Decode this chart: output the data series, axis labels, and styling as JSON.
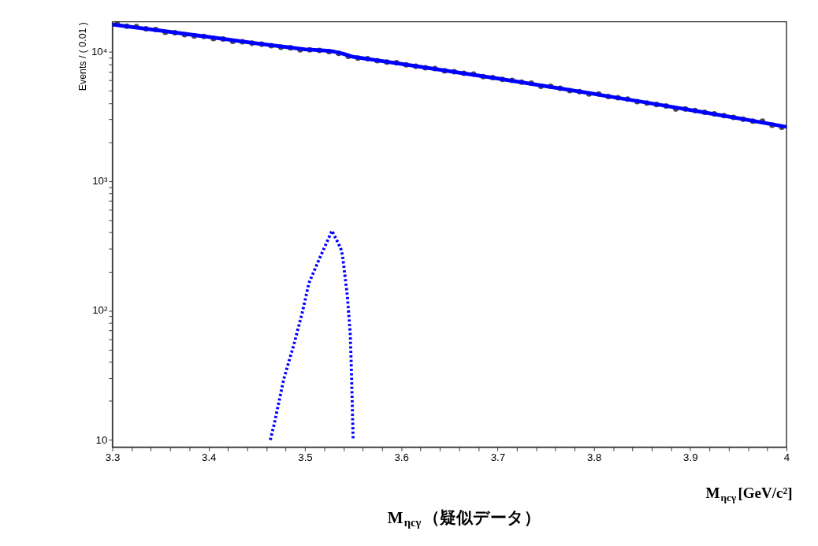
{
  "chart_data": {
    "type": "scatter",
    "ylabel": "Events / ( 0.01 )",
    "xlabel": "M$_{ηcγ}$[GeV/c²]",
    "annotations": [
      "M$_{ηcγ}$（疑似データ）"
    ],
    "log": "y",
    "grid": false,
    "xlim": [
      3.3,
      4.0
    ],
    "xticks": [
      3.3,
      {
        "value": 3.32,
        "label": null
      },
      {
        "value": 3.34,
        "label": null
      },
      {
        "value": 3.36,
        "label": null
      },
      {
        "value": 3.38,
        "label": null
      },
      3.4,
      {
        "value": 3.42,
        "label": null
      },
      {
        "value": 3.44,
        "label": null
      },
      {
        "value": 3.46,
        "label": null
      },
      {
        "value": 3.48,
        "label": null
      },
      3.5,
      {
        "value": 3.52,
        "label": null
      },
      {
        "value": 3.54,
        "label": null
      },
      {
        "value": 3.56,
        "label": null
      },
      {
        "value": 3.58,
        "label": null
      },
      3.6,
      {
        "value": 3.62,
        "label": null
      },
      {
        "value": 3.64,
        "label": null
      },
      {
        "value": 3.66,
        "label": null
      },
      {
        "value": 3.68,
        "label": null
      },
      3.7,
      {
        "value": 3.72,
        "label": null
      },
      {
        "value": 3.74,
        "label": null
      },
      {
        "value": 3.76,
        "label": null
      },
      {
        "value": 3.78,
        "label": null
      },
      3.8,
      {
        "value": 3.82,
        "label": null
      },
      {
        "value": 3.84,
        "label": null
      },
      {
        "value": 3.86,
        "label": null
      },
      {
        "value": 3.88,
        "label": null
      },
      3.9,
      {
        "value": 3.92,
        "label": null
      },
      {
        "value": 3.94,
        "label": null
      },
      {
        "value": 3.96,
        "label": null
      },
      {
        "value": 3.98,
        "label": null
      },
      {
        "value": 4.0,
        "label": "4"
      }
    ],
    "ylim": [
      8.8,
      17000
    ],
    "yticks": [
      10,
      {
        "value": 20,
        "label": null
      },
      {
        "value": 30,
        "label": null
      },
      {
        "value": 40,
        "label": null
      },
      {
        "value": 50,
        "label": null
      },
      {
        "value": 60,
        "label": null
      },
      {
        "value": 70,
        "label": null
      },
      {
        "value": 80,
        "label": null
      },
      {
        "value": 90,
        "label": null
      },
      {
        "value": 100,
        "label": "10²"
      },
      {
        "value": 200,
        "label": null
      },
      {
        "value": 300,
        "label": null
      },
      {
        "value": 400,
        "label": null
      },
      {
        "value": 500,
        "label": null
      },
      {
        "value": 600,
        "label": null
      },
      {
        "value": 700,
        "label": null
      },
      {
        "value": 800,
        "label": null
      },
      {
        "value": 900,
        "label": null
      },
      {
        "value": 1000,
        "label": "10³"
      },
      {
        "value": 2000,
        "label": null
      },
      {
        "value": 3000,
        "label": null
      },
      {
        "value": 4000,
        "label": null
      },
      {
        "value": 5000,
        "label": null
      },
      {
        "value": 6000,
        "label": null
      },
      {
        "value": 7000,
        "label": null
      },
      {
        "value": 8000,
        "label": null
      },
      {
        "value": 9000,
        "label": null
      },
      {
        "value": 10000,
        "label": "10⁴"
      }
    ],
    "series": [
      {
        "marker": "circle",
        "color": "#000000",
        "x": [
          3.305,
          3.315,
          3.325,
          3.335,
          3.345,
          3.355,
          3.365,
          3.375,
          3.385,
          3.395,
          3.405,
          3.415,
          3.425,
          3.435,
          3.445,
          3.455,
          3.465,
          3.475,
          3.485,
          3.495,
          3.505,
          3.515,
          3.525,
          3.535,
          3.545,
          3.555,
          3.565,
          3.575,
          3.585,
          3.595,
          3.605,
          3.615,
          3.625,
          3.635,
          3.645,
          3.655,
          3.665,
          3.675,
          3.685,
          3.695,
          3.705,
          3.715,
          3.725,
          3.735,
          3.745,
          3.755,
          3.765,
          3.775,
          3.785,
          3.795,
          3.805,
          3.815,
          3.825,
          3.835,
          3.845,
          3.855,
          3.865,
          3.875,
          3.885,
          3.895,
          3.905,
          3.915,
          3.925,
          3.935,
          3.945,
          3.955,
          3.965,
          3.975,
          3.985,
          3.995
        ],
        "values": [
          16400,
          15700,
          15600,
          15000,
          14800,
          14100,
          14000,
          13500,
          13200,
          13100,
          12600,
          12500,
          12000,
          11900,
          11600,
          11400,
          11100,
          10800,
          10700,
          10300,
          10300,
          10200,
          10000,
          9700,
          9200,
          8900,
          8800,
          8500,
          8300,
          8200,
          7900,
          7700,
          7500,
          7400,
          7100,
          7000,
          6800,
          6700,
          6400,
          6300,
          6100,
          6000,
          5800,
          5700,
          5400,
          5400,
          5200,
          5000,
          4900,
          4700,
          4700,
          4500,
          4400,
          4300,
          4100,
          4000,
          3900,
          3800,
          3600,
          3600,
          3500,
          3400,
          3300,
          3200,
          3100,
          3000,
          2900,
          2900,
          2700,
          2600
        ]
      },
      {
        "type": "line",
        "line_style": "solid",
        "color": "#0000ff",
        "x": [
          3.3,
          3.35,
          3.4,
          3.45,
          3.5,
          3.51,
          3.52,
          3.53,
          3.54,
          3.55,
          3.6,
          3.65,
          3.7,
          3.75,
          3.8,
          3.85,
          3.9,
          3.95,
          4.0
        ],
        "values": [
          16180,
          14520,
          12970,
          11570,
          10400,
          10300,
          10200,
          10000,
          9600,
          9100,
          8030,
          7060,
          6190,
          5410,
          4710,
          4090,
          3540,
          3050,
          2620
        ]
      },
      {
        "type": "line",
        "line_style": "dotted",
        "color": "#0000ff",
        "x": [
          3.464,
          3.468,
          3.478,
          3.488,
          3.497,
          3.504,
          3.514,
          3.528,
          3.537,
          3.539,
          3.544,
          3.547,
          3.548,
          3.549,
          3.55
        ],
        "values": [
          10,
          13.2,
          29.6,
          53,
          95,
          162,
          242,
          413,
          304,
          266,
          129,
          66,
          39,
          20,
          10.1
        ]
      }
    ]
  }
}
